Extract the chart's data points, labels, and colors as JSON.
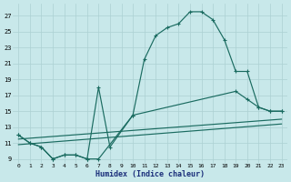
{
  "xlabel": "Humidex (Indice chaleur)",
  "bg_color": "#c8e8ea",
  "grid_color": "#acd0d2",
  "line_color": "#1a6b60",
  "xlim": [
    -0.5,
    23.5
  ],
  "ylim": [
    8.5,
    28.5
  ],
  "xtick_vals": [
    0,
    1,
    2,
    3,
    4,
    5,
    6,
    7,
    8,
    9,
    10,
    11,
    12,
    13,
    14,
    15,
    16,
    17,
    18,
    19,
    20,
    21,
    22,
    23
  ],
  "ytick_vals": [
    9,
    11,
    13,
    15,
    17,
    19,
    21,
    23,
    25,
    27
  ],
  "curve_main_x": [
    0,
    1,
    2,
    3,
    4,
    5,
    6,
    7,
    10,
    11,
    12,
    13,
    14,
    15,
    16,
    17,
    18,
    19,
    20,
    21,
    22,
    23
  ],
  "curve_main_y": [
    12,
    11,
    10.5,
    9,
    9.5,
    9.5,
    9,
    9,
    14.5,
    21.5,
    24.5,
    25.5,
    26.0,
    27.5,
    27.5,
    26.5,
    24.0,
    20.0,
    20.0,
    15.5,
    15,
    15
  ],
  "curve_spike_x": [
    0,
    1,
    2,
    3,
    4,
    5,
    6,
    7,
    8,
    10,
    19,
    20,
    21,
    22,
    23
  ],
  "curve_spike_y": [
    12,
    11,
    10.5,
    9,
    9.5,
    9.5,
    9,
    18,
    10.5,
    14.5,
    17.5,
    16.5,
    15.5,
    15,
    15
  ],
  "line1_x": [
    0,
    23
  ],
  "line1_y": [
    11.5,
    14.0
  ],
  "line2_x": [
    0,
    23
  ],
  "line2_y": [
    10.8,
    13.4
  ]
}
